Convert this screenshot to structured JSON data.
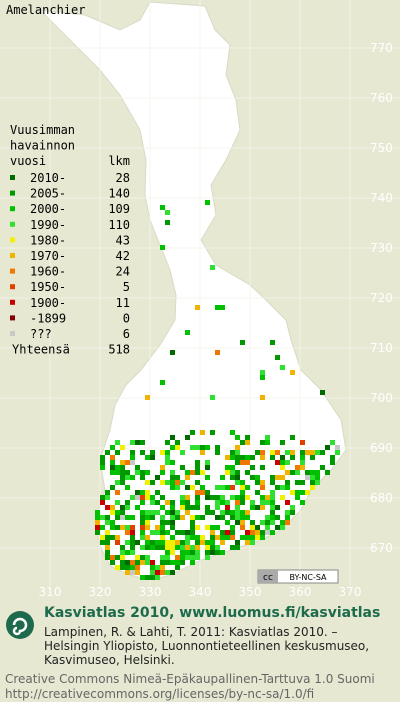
{
  "title": "Amelanchier",
  "legend": {
    "heading": [
      "Vuusimman",
      "havainnon",
      "vuosi"
    ],
    "count_heading": "lkm",
    "items": [
      {
        "label": "2010-",
        "count": 28,
        "color": "#006a00"
      },
      {
        "label": "2005-",
        "count": 140,
        "color": "#009a00"
      },
      {
        "label": "2000-",
        "count": 109,
        "color": "#00c000"
      },
      {
        "label": "1990-",
        "count": 110,
        "color": "#30e030"
      },
      {
        "label": "1980-",
        "count": 43,
        "color": "#f0f000"
      },
      {
        "label": "1970-",
        "count": 42,
        "color": "#f0b400"
      },
      {
        "label": "1960-",
        "count": 24,
        "color": "#f07800"
      },
      {
        "label": "1950-",
        "count": 5,
        "color": "#e04000"
      },
      {
        "label": "1900-",
        "count": 11,
        "color": "#c80000"
      },
      {
        "label": "-1899",
        "count": 0,
        "color": "#800000"
      },
      {
        "label": "???",
        "count": 6,
        "color": "#c8c8c8"
      }
    ],
    "total_label": "Yhteensä",
    "total": 518
  },
  "grid": {
    "x_labels": [
      310,
      320,
      330,
      340,
      350,
      360,
      370
    ],
    "y_labels": [
      770,
      760,
      750,
      740,
      730,
      720,
      710,
      700,
      690,
      680,
      670
    ]
  },
  "license_badge": {
    "symbol": "cc",
    "text": "BY-NC-SA"
  },
  "footer": {
    "title": "Kasviatlas 2010, www.luomus.fi/kasviatlas",
    "citation": [
      "Lampinen, R. & Lahti, T. 2011: Kasviatlas 2010. –",
      "Helsingin Yliopisto, Luonnontieteellinen keskusmuseo,",
      "Kasvimuseo, Helsinki."
    ],
    "license": [
      "Creative Commons Nimeä-Epäkaupallinen-Tarttuva 1.0 Suomi",
      "http://creativecommons.org/licenses/by-nc-sa/1.0/fi"
    ]
  }
}
